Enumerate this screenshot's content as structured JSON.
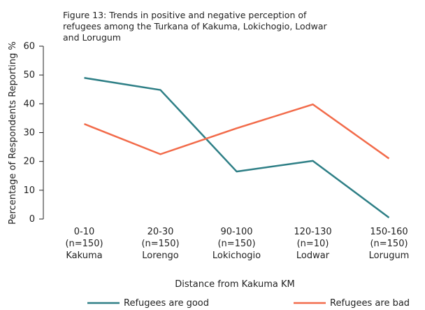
{
  "chart_data": {
    "type": "line",
    "title": "Figure 13: Trends in positive and negative perception of\nrefugees among the Turkana of Kakuma, Lokichogio, Lodwar\nand Lorugum",
    "ylabel": "Percentage of Respondents Reporting %",
    "xlabel": "Distance from Kakuma KM",
    "categories": [
      "0-10\n(n=150)\nKakuma",
      "20-30\n(n=150)\nLorengo",
      "90-100\n(n=150)\nLokichogio",
      "120-130\n(n=10)\nLodwar",
      "150-160\n(n=150)\nLorugum"
    ],
    "series": [
      {
        "name": "Refugees are good",
        "color": "#2e7f86",
        "values": [
          49,
          44.8,
          16.5,
          20.2,
          0.5
        ]
      },
      {
        "name": "Refugees are bad",
        "color": "#f26b4a",
        "values": [
          33,
          22.5,
          31.5,
          39.8,
          21
        ]
      }
    ],
    "ylim": [
      0,
      60
    ],
    "yticks": [
      0,
      10,
      20,
      30,
      40,
      50,
      60
    ]
  }
}
